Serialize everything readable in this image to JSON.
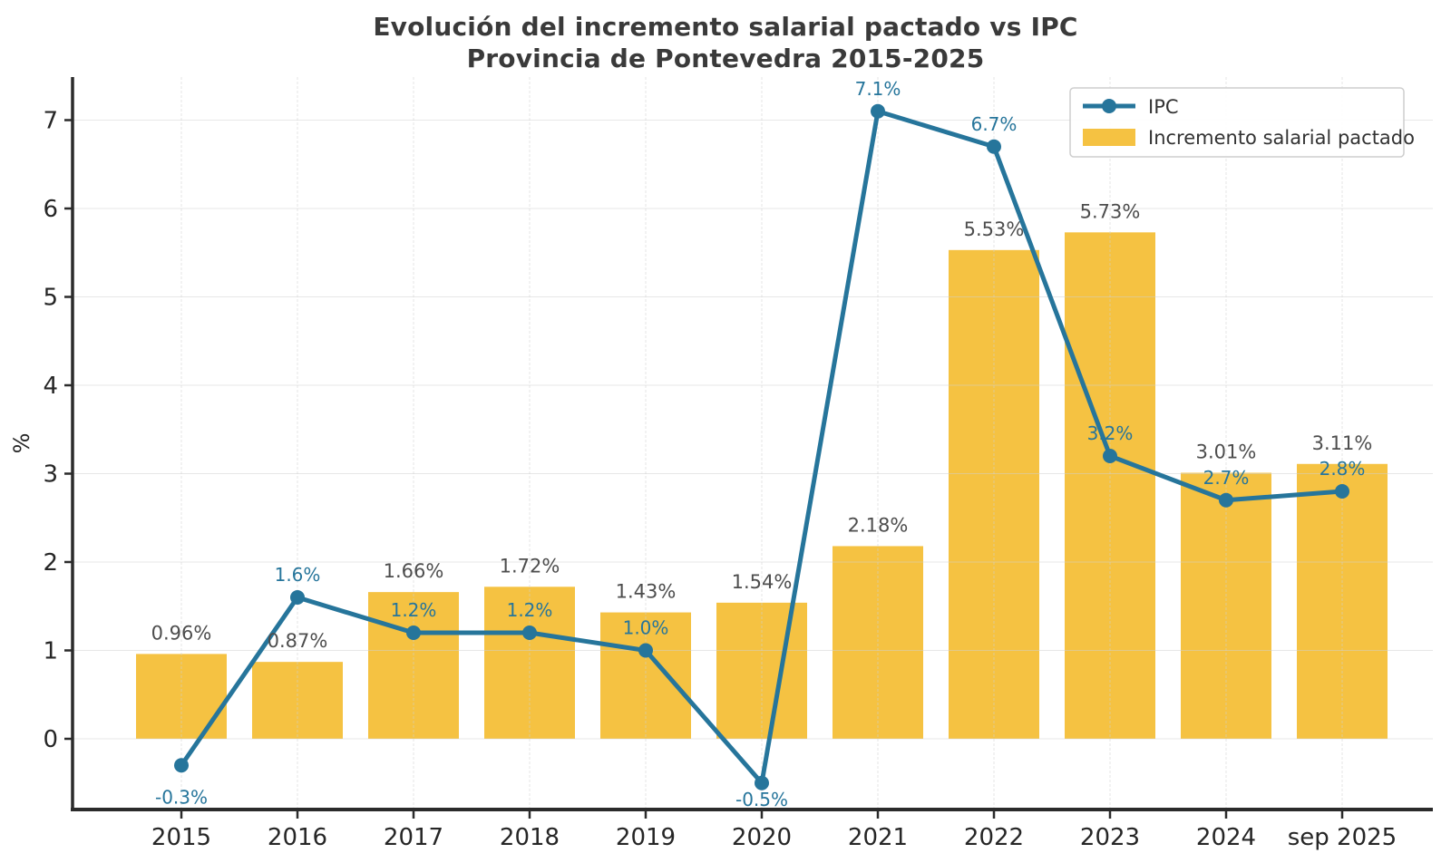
{
  "title": {
    "line1": "Evolución del incremento salarial pactado vs IPC",
    "line2": "Provincia de Pontevedra 2015-2025"
  },
  "ylabel": "%",
  "legend": {
    "items": [
      {
        "label": "IPC",
        "marker": "line"
      },
      {
        "label": "Incremento salarial pactado",
        "marker": "bar"
      }
    ],
    "position": "upper right"
  },
  "colors": {
    "bar": "#F5C242",
    "line": "#26759B",
    "title_text": "#3A3A3A",
    "tick_text": "#262626",
    "bar_label_text": "#4D4D4D",
    "grid": "#D0D0D0",
    "spine": "#2B2B2B",
    "legend_border": "#CCCCCC",
    "legend_bg": "#FFFFFF"
  },
  "chart_data": {
    "type": "bar",
    "title": "Evolución del incremento salarial pactado vs IPC — Provincia de Pontevedra 2015-2025",
    "xlabel": "",
    "ylabel": "%",
    "categories": [
      "2015",
      "2016",
      "2017",
      "2018",
      "2019",
      "2020",
      "2021",
      "2022",
      "2023",
      "2024",
      "sep 2025"
    ],
    "series": [
      {
        "name": "Incremento salarial pactado",
        "type": "bar",
        "color": "#F5C242",
        "values": [
          0.96,
          0.87,
          1.66,
          1.72,
          1.43,
          1.54,
          2.18,
          5.53,
          5.73,
          3.01,
          3.11
        ],
        "labels": [
          "0.96%",
          "0.87%",
          "1.66%",
          "1.72%",
          "1.43%",
          "1.54%",
          "2.18%",
          "5.53%",
          "5.73%",
          "3.01%",
          "3.11%"
        ]
      },
      {
        "name": "IPC",
        "type": "line",
        "color": "#26759B",
        "values": [
          -0.3,
          1.6,
          1.2,
          1.2,
          1.0,
          -0.5,
          7.1,
          6.7,
          3.2,
          2.7,
          2.8
        ],
        "labels": [
          "-0.3%",
          "1.6%",
          "1.2%",
          "1.2%",
          "1.0%",
          "-0.5%",
          "7.1%",
          "6.7%",
          "3.2%",
          "2.7%",
          "2.8%"
        ]
      }
    ],
    "yticks": [
      0,
      1,
      2,
      3,
      4,
      5,
      6,
      7
    ],
    "ylim": [
      -0.8,
      7.5
    ],
    "grid": true,
    "legend_position": "upper right"
  }
}
